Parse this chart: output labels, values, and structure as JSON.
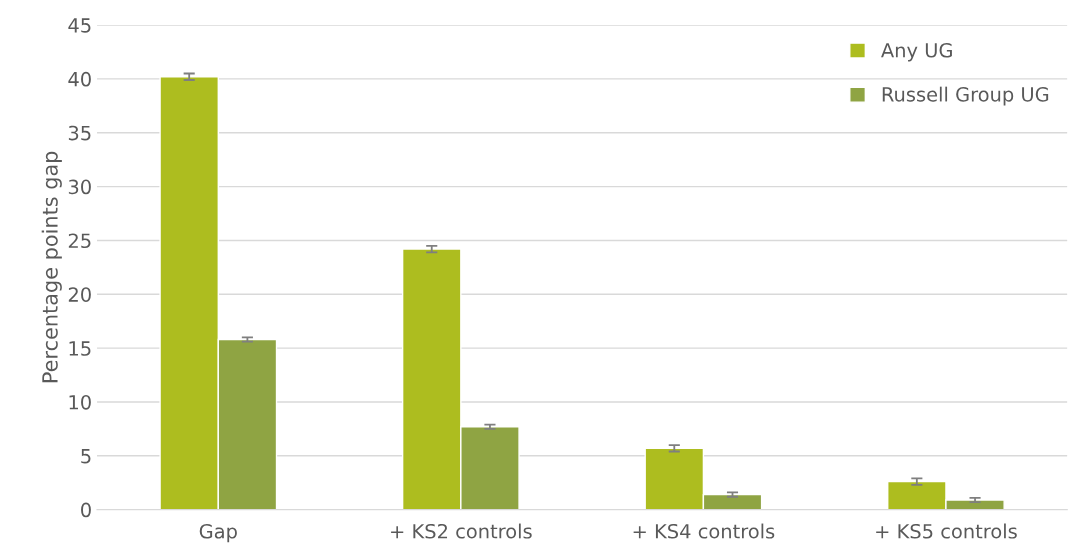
{
  "chart_data": {
    "type": "bar",
    "ylabel": "Percentage points gap",
    "categories": [
      "Gap",
      "+ KS2 controls",
      "+ KS4 controls",
      "+ KS5 controls"
    ],
    "series": [
      {
        "name": "Any UG",
        "color": "#adbd1f",
        "values": [
          40.2,
          24.2,
          5.7,
          2.6
        ],
        "errors": [
          0.3,
          0.3,
          0.3,
          0.3
        ]
      },
      {
        "name": "Russell Group UG",
        "color": "#8fa443",
        "values": [
          15.8,
          7.7,
          1.4,
          0.9
        ],
        "errors": [
          0.2,
          0.2,
          0.2,
          0.2
        ]
      }
    ],
    "ylim": [
      0,
      45
    ],
    "yticks": [
      0,
      5,
      10,
      15,
      20,
      25,
      30,
      35,
      40,
      45
    ],
    "grid": "y",
    "legend": "top right"
  }
}
